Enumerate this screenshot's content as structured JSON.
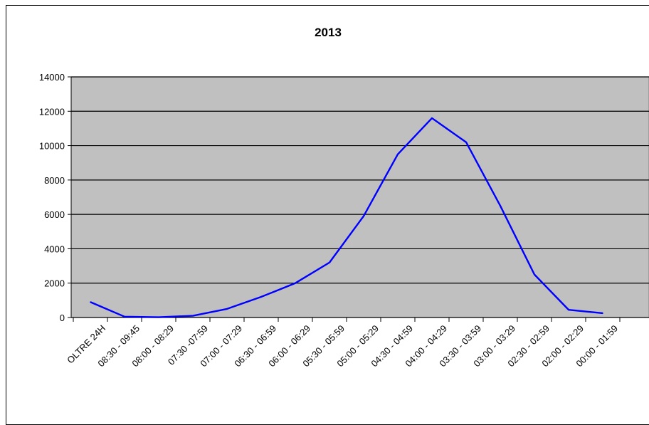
{
  "chart_data": {
    "type": "line",
    "title": "2013",
    "xlabel": "",
    "ylabel": "",
    "categories": [
      "OLTRE 24H",
      "08:30 - 09:45",
      "08:00 - 08:29",
      "07:30 -07:59",
      "07:00 - 07:29",
      "06:30 - 06:59",
      "06:00 - 06:29",
      "05:30 - 05:59",
      "05:00 - 05:29",
      "04:30 - 04:59",
      "04:00 - 04:29",
      "03:30 - 03:59",
      "03:00 - 03:29",
      "02:30 - 02:59",
      "02:00 - 02:29",
      "00:00 - 01:59"
    ],
    "series": [
      {
        "values": [
          900,
          50,
          20,
          100,
          500,
          1200,
          2000,
          3200,
          5900,
          9500,
          11600,
          10200,
          6500,
          2500,
          450,
          250
        ],
        "color": "#0000ff"
      }
    ],
    "ylim": [
      0,
      14000
    ],
    "yticks": [
      0,
      2000,
      4000,
      6000,
      8000,
      10000,
      12000,
      14000
    ],
    "ytick_labels": [
      "0",
      "2000",
      "4000",
      "6000",
      "8000",
      "10000",
      "12000",
      "14000"
    ],
    "grid": true,
    "plot_background": "#c0c0c0",
    "legend": "none"
  }
}
